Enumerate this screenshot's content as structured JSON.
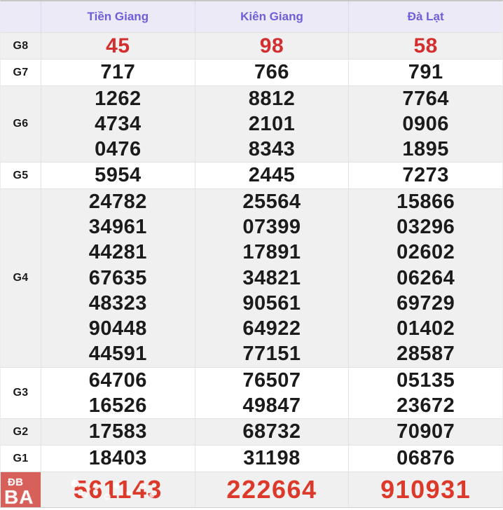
{
  "header": {
    "corner": "",
    "columns": [
      "Tiền Giang",
      "Kiên Giang",
      "Đà Lạt"
    ]
  },
  "rows": [
    {
      "key": "g8",
      "label": "G8",
      "shade": "gray",
      "red": true,
      "cells": [
        [
          "45"
        ],
        [
          "98"
        ],
        [
          "58"
        ]
      ]
    },
    {
      "key": "g7",
      "label": "G7",
      "shade": "white",
      "cells": [
        [
          "717"
        ],
        [
          "766"
        ],
        [
          "791"
        ]
      ]
    },
    {
      "key": "g6",
      "label": "G6",
      "shade": "gray",
      "cells": [
        [
          "1262",
          "4734",
          "0476"
        ],
        [
          "8812",
          "2101",
          "8343"
        ],
        [
          "7764",
          "0906",
          "1895"
        ]
      ]
    },
    {
      "key": "g5",
      "label": "G5",
      "shade": "white",
      "cells": [
        [
          "5954"
        ],
        [
          "2445"
        ],
        [
          "7273"
        ]
      ]
    },
    {
      "key": "g4",
      "label": "G4",
      "shade": "gray",
      "cells": [
        [
          "24782",
          "34961",
          "44281",
          "67635",
          "48323",
          "90448",
          "44591"
        ],
        [
          "25564",
          "07399",
          "17891",
          "34821",
          "90561",
          "64922",
          "77151"
        ],
        [
          "15866",
          "03296",
          "02602",
          "06264",
          "69729",
          "01402",
          "28587"
        ]
      ]
    },
    {
      "key": "g3",
      "label": "G3",
      "shade": "white",
      "cells": [
        [
          "64706",
          "16526"
        ],
        [
          "76507",
          "49847"
        ],
        [
          "05135",
          "23672"
        ]
      ]
    },
    {
      "key": "g2",
      "label": "G2",
      "shade": "gray",
      "cells": [
        [
          "17583"
        ],
        [
          "68732"
        ],
        [
          "70907"
        ]
      ]
    },
    {
      "key": "g1",
      "label": "G1",
      "shade": "white",
      "cells": [
        [
          "18403"
        ],
        [
          "31198"
        ],
        [
          "06876"
        ]
      ]
    },
    {
      "key": "db",
      "label": "ĐB",
      "shade": "gray",
      "special": true,
      "watermarked_col": 0,
      "cells": [
        [
          "561143"
        ],
        [
          "222664"
        ],
        [
          "910931"
        ]
      ]
    }
  ],
  "watermark": {
    "text": "BA"
  },
  "colors": {
    "accent_purple": "#6e5ed8",
    "header_bg": "#edeaf8",
    "stripe_bg": "#f0f0f0",
    "border": "#e2e2e2",
    "red_number": "#d32f2f",
    "special_red": "#dd392b",
    "special_label_bg": "#d8605b",
    "number_black": "#1b1b1b"
  }
}
